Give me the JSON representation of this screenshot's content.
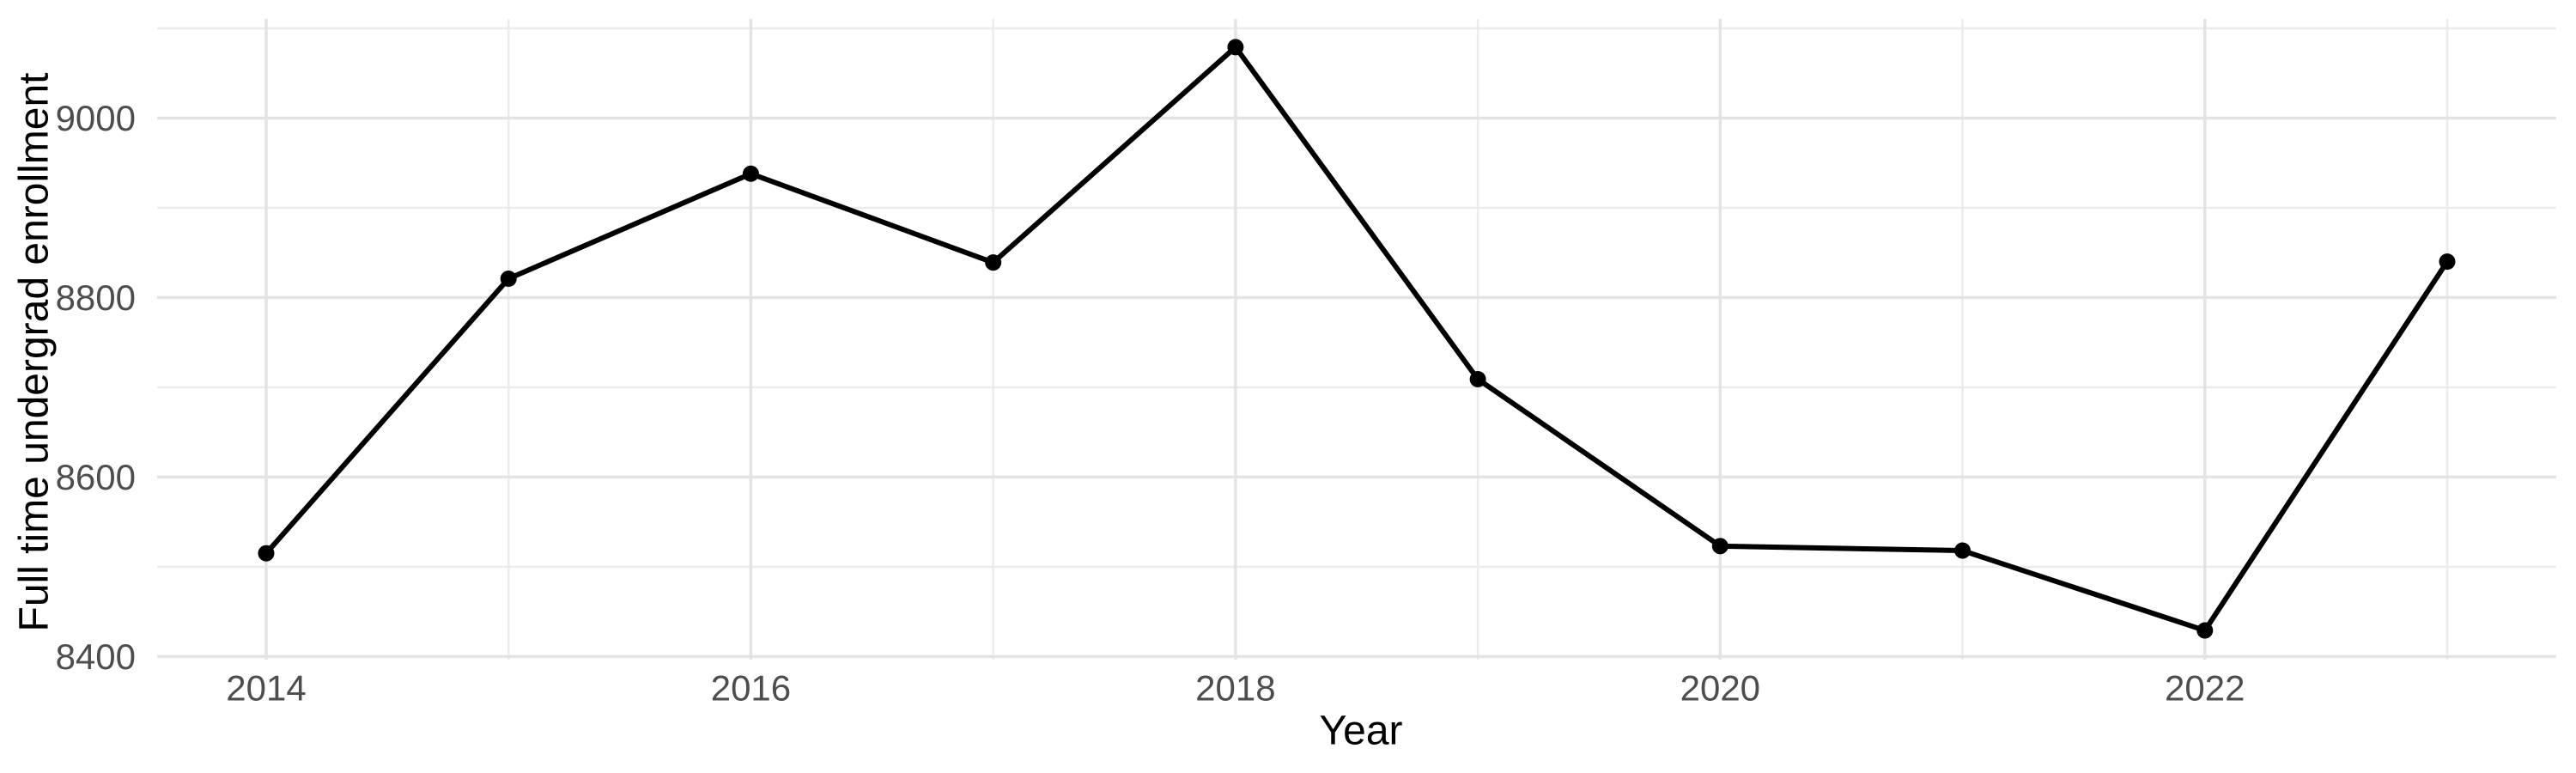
{
  "chart_data": {
    "type": "line",
    "title": "",
    "xlabel": "Year",
    "ylabel": "Full time undergrad enrollment",
    "series_name": "Full time undergrad enrollment",
    "x": [
      2014,
      2015,
      2016,
      2017,
      2018,
      2019,
      2020,
      2021,
      2022,
      2023
    ],
    "values": [
      8515,
      8821,
      8938,
      8839,
      9079,
      8709,
      8523,
      8518,
      8429,
      8840
    ],
    "x_major_ticks": [
      2014,
      2016,
      2018,
      2020,
      2022
    ],
    "x_minor_gridlines": [
      2015,
      2017,
      2019,
      2021,
      2023
    ],
    "y_major_ticks": [
      8400,
      8600,
      8800,
      9000
    ],
    "y_minor_gridlines": [
      8500,
      8700,
      8900,
      9100
    ],
    "xlim": [
      2013.55,
      2023.45
    ],
    "ylim": [
      8396.5,
      9110.5
    ],
    "grid": "major+minor",
    "legend": "none",
    "style": {
      "background": "#ffffff",
      "grid_major_color": "#e4e4e4",
      "grid_minor_color": "#ececec",
      "line_color": "#000000",
      "point_color": "#000000",
      "tick_label_color": "#4d4d4d",
      "axis_title_color": "#000000"
    }
  }
}
